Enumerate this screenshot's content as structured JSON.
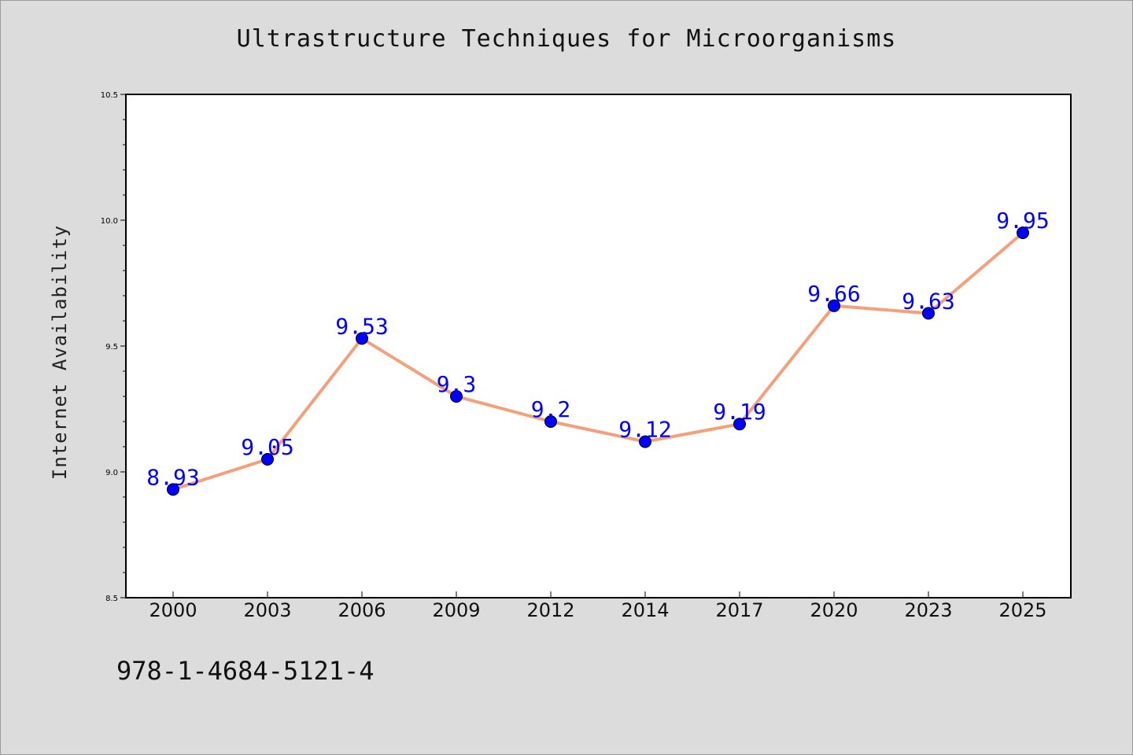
{
  "chart_data": {
    "type": "line",
    "title": "Ultrastructure Techniques for Microorganisms",
    "xlabel": "",
    "ylabel": "Internet Availability",
    "categories": [
      "2000",
      "2003",
      "2006",
      "2009",
      "2012",
      "2014",
      "2017",
      "2020",
      "2023",
      "2025"
    ],
    "values": [
      8.93,
      9.05,
      9.53,
      9.3,
      9.2,
      9.12,
      9.19,
      9.66,
      9.63,
      9.95
    ],
    "ylim": [
      8.5,
      10.5
    ],
    "yticks": [
      "8.5",
      "9.0",
      "9.5",
      "10.0",
      "10.5"
    ],
    "data_labels": [
      "8.93",
      "9.05",
      "9.53",
      "9.3",
      "9.2",
      "9.12",
      "9.19",
      "9.66",
      "9.63",
      "9.95"
    ],
    "grid": false,
    "line_color": "#f4a07a",
    "marker_color": "#0000ff"
  },
  "footer": {
    "isbn": "978-1-4684-5121-4"
  }
}
